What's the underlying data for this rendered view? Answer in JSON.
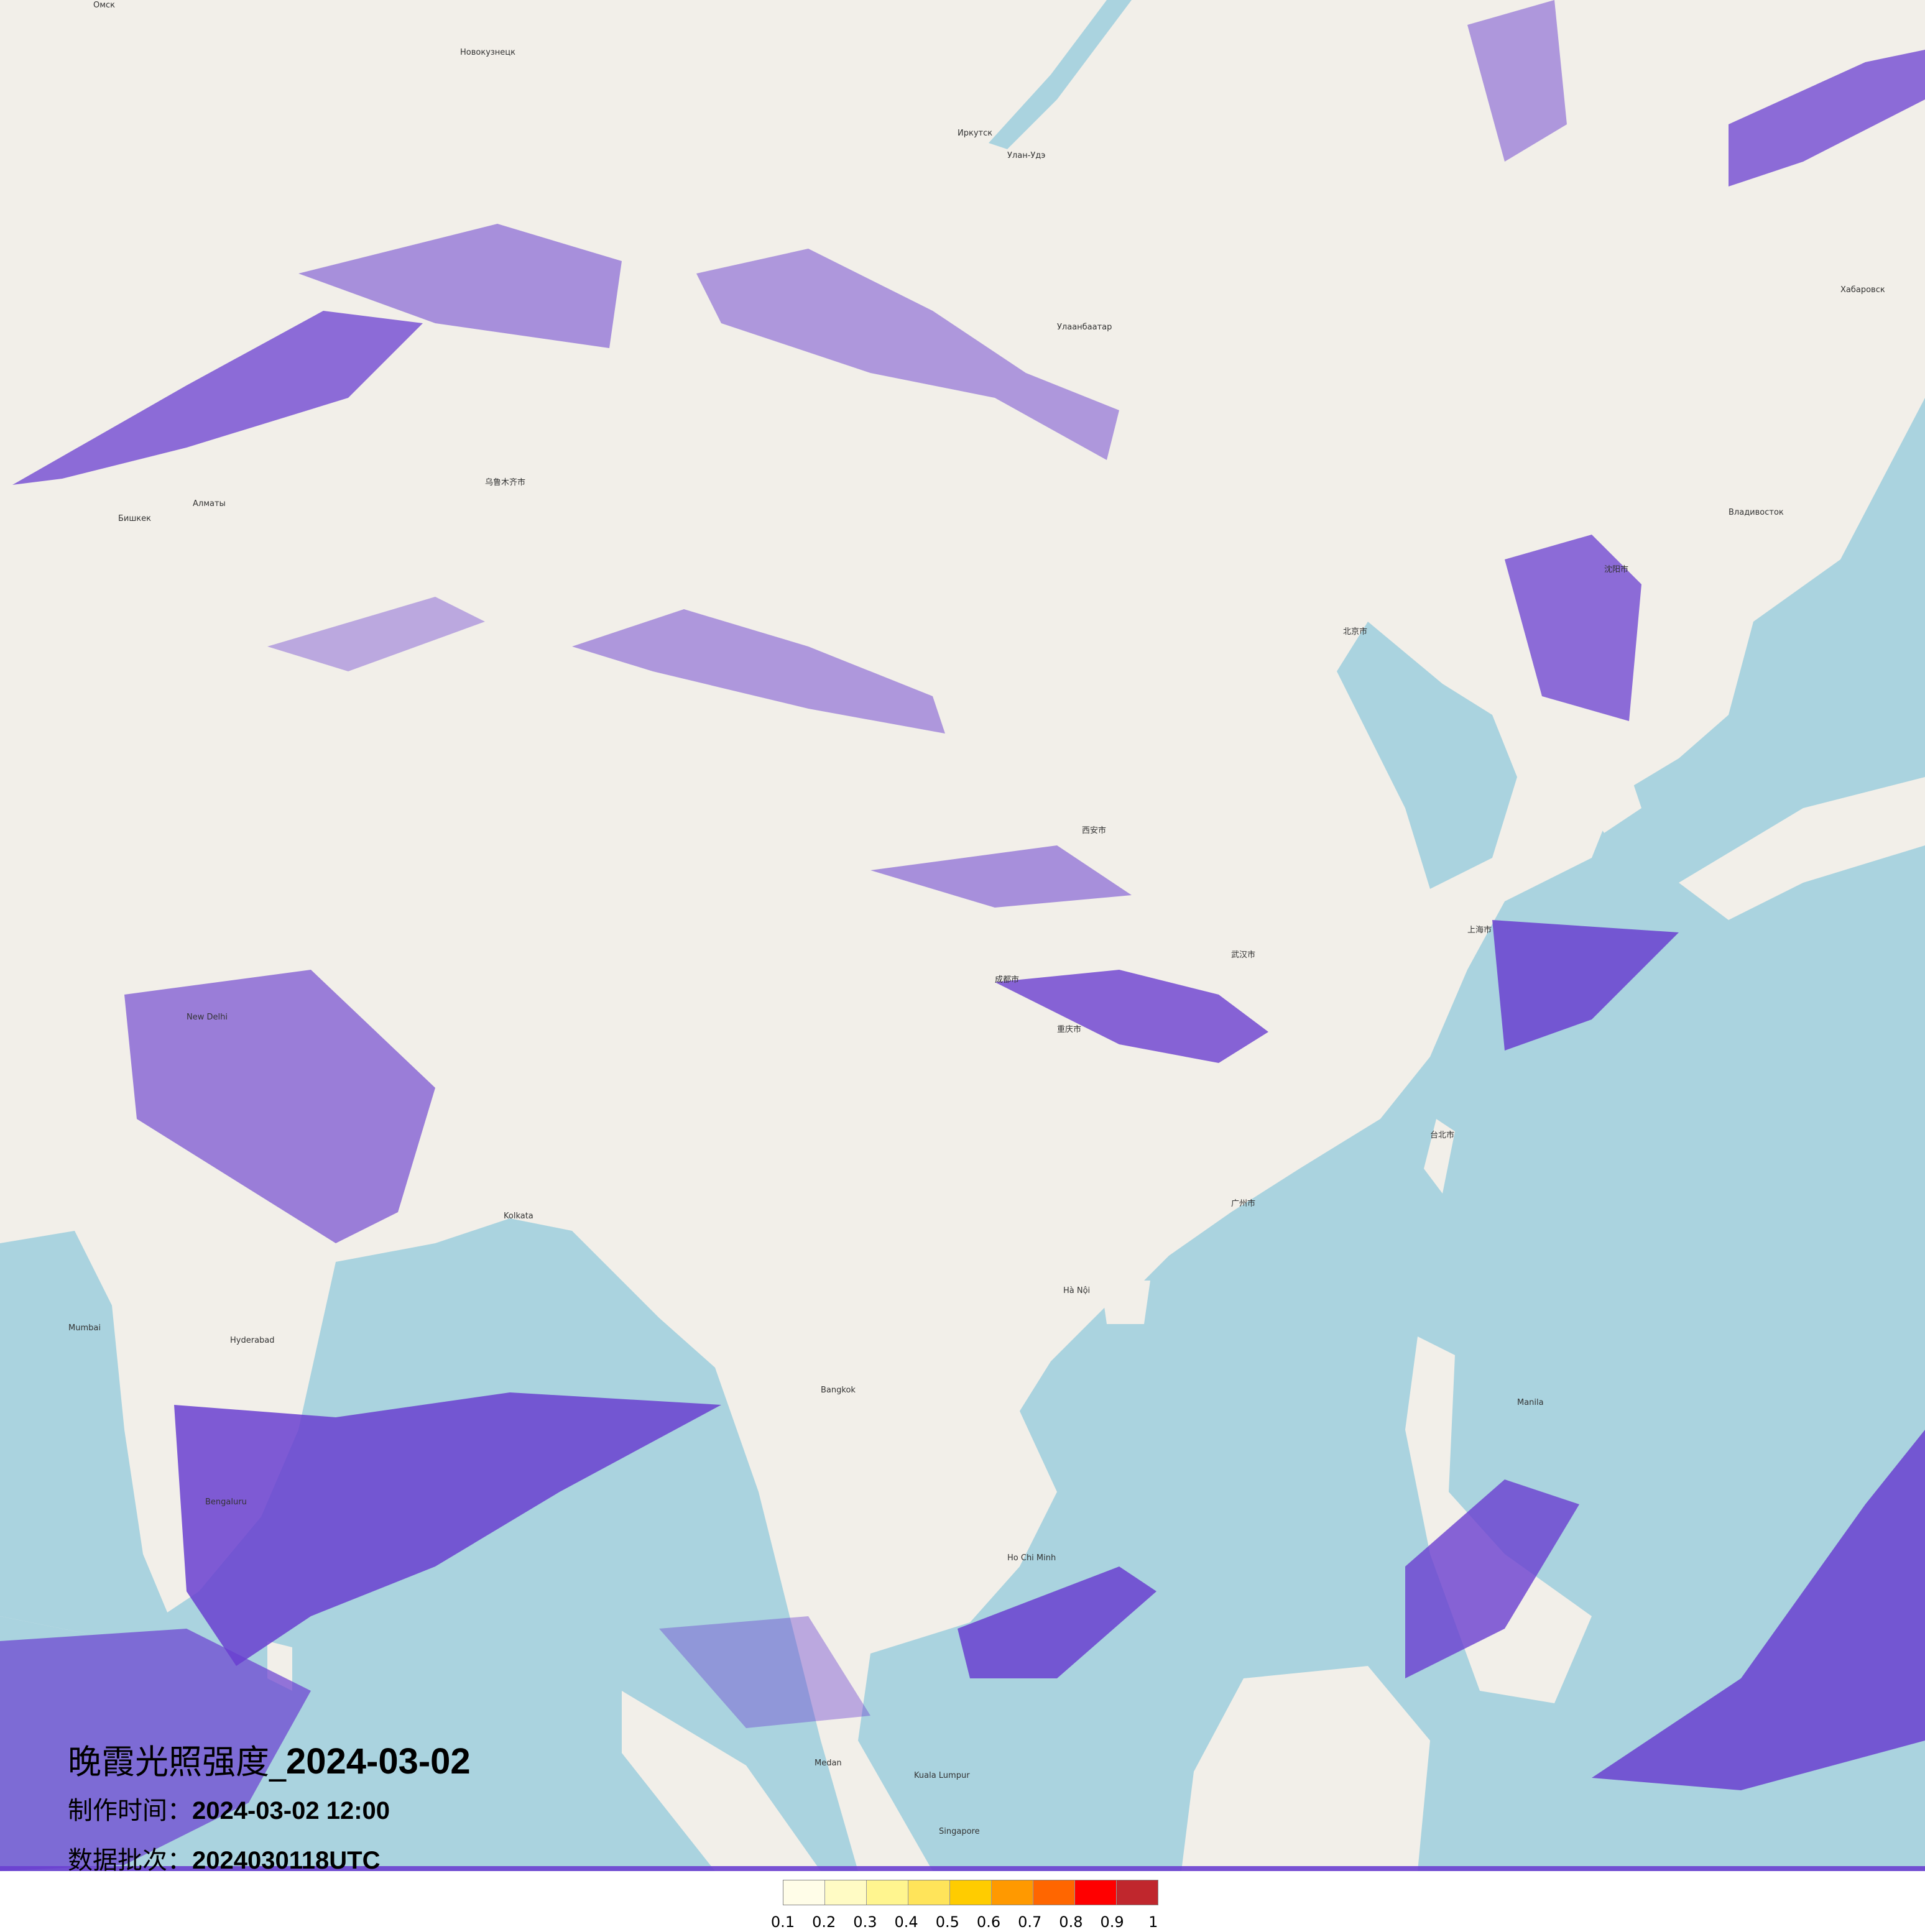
{
  "title": {
    "prefix": "晚霞光照强度_",
    "date": "2024-03-02"
  },
  "made_time": {
    "label": "制作时间：",
    "value": "2024-03-02 12:00"
  },
  "data_batch": {
    "label": "数据批次：",
    "value": "2024030118UTC"
  },
  "legend": {
    "colors": [
      "#fffde8",
      "#fffbc4",
      "#fff58f",
      "#ffe45a",
      "#ffcc00",
      "#ff9900",
      "#ff6600",
      "#ff0000",
      "#c0272d"
    ],
    "labels": [
      "0.1",
      "0.2",
      "0.3",
      "0.4",
      "0.5",
      "0.6",
      "0.7",
      "0.8",
      "0.9",
      "1"
    ]
  },
  "map": {
    "land_color": "#f2efe9",
    "sea_color": "#aad3df",
    "glow_color": "#6a3fd0",
    "cities": [
      "Омск",
      "Новокузнецк",
      "Иркутск",
      "Улан-Удэ",
      "Улаанбаатар",
      "Хабаровск",
      "Владивосток",
      "Алматы",
      "Бишкек",
      "乌鲁木齐市",
      "北京市",
      "沈阳市",
      "上海市",
      "武汉市",
      "成都市",
      "重庆市",
      "西安市",
      "广州市",
      "台北市",
      "New Delhi",
      "Kolkata",
      "Mumbai",
      "Hyderabad",
      "Bengaluru",
      "Hà Nội",
      "Bangkok",
      "Ho Chi Minh",
      "Manila",
      "Kuala Lumpur",
      "Singapore",
      "Medan"
    ]
  }
}
